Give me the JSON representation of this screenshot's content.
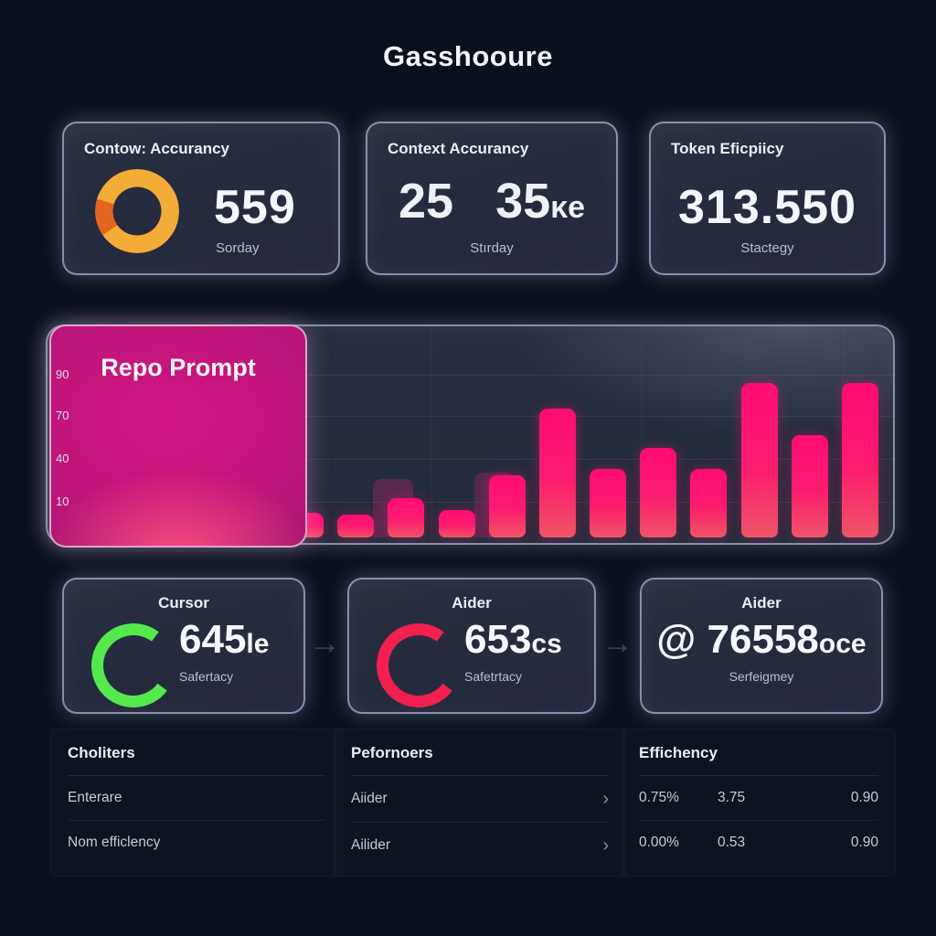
{
  "page": {
    "title": "Gasshooure"
  },
  "colors": {
    "background": "#0a111d",
    "accent_pink": "#ff0c72",
    "accent_amber": "#f3ac38",
    "accent_green": "#55e94e",
    "accent_red": "#f2204e"
  },
  "stat_cards": [
    {
      "title": "Contow: Accurancy",
      "value": "559",
      "subtitle": "Sorday",
      "icon": "donut-ring"
    },
    {
      "title": "Context Accurancy",
      "value_a": "25",
      "value_b": "35",
      "value_b_suffix": "ᴋe",
      "subtitle": "Stırday"
    },
    {
      "title": "Token Eficpiicy",
      "value": "313.550",
      "subtitle": "Stactegy"
    }
  ],
  "chart_data": {
    "type": "bar",
    "overlay_title": "Repo Prompt",
    "ylabel": "",
    "xlabel": "",
    "ylim": [
      0,
      100
    ],
    "grid": true,
    "y_ticks": [
      "90",
      "70",
      "40",
      "10"
    ],
    "values": [
      3,
      2,
      12,
      4,
      27,
      70,
      31,
      45,
      31,
      86,
      52,
      86
    ],
    "bars": [
      {
        "v": 3,
        "h": 12
      },
      {
        "v": 2,
        "h": 11
      },
      {
        "v": 12,
        "h": 19,
        "ghost": 28
      },
      {
        "v": 4,
        "h": 13
      },
      {
        "v": 27,
        "h": 30,
        "ghost": 31
      },
      {
        "v": 70,
        "h": 62
      },
      {
        "v": 31,
        "h": 33
      },
      {
        "v": 45,
        "h": 43
      },
      {
        "v": 31,
        "h": 33
      },
      {
        "v": 86,
        "h": 74
      },
      {
        "v": 52,
        "h": 49
      },
      {
        "v": 86,
        "h": 74
      }
    ],
    "bar_color_top": "#ff0c72",
    "bar_color_bottom": "#ef5566"
  },
  "model_cards": [
    {
      "title": "Cursor",
      "value": "645",
      "suffix": "le",
      "subtitle": "Safertacy",
      "arc_color": "#55e94e"
    },
    {
      "title": "Aider",
      "value": "653",
      "suffix": "cs",
      "subtitle": "Safetrtacy",
      "arc_color": "#f2204e"
    },
    {
      "title": "Aider",
      "prefix": "@ ",
      "value": "76558",
      "suffix": "oce",
      "subtitle": "Serfeigmey",
      "arc_color": null
    }
  ],
  "connector_glyph": "→",
  "lists": [
    {
      "header": "Choliters",
      "rows": [
        {
          "label": "Enterare"
        },
        {
          "label": "Nom efficlency"
        }
      ]
    },
    {
      "header": "Pefornoers",
      "rows": [
        {
          "label": "Aiider",
          "chevron": "›"
        },
        {
          "label": "Ailider",
          "chevron": "›"
        }
      ]
    },
    {
      "header": "Effichency",
      "rows": [
        {
          "cols": [
            "0.75%",
            "3.75",
            "0.90"
          ]
        },
        {
          "cols": [
            "0.00%",
            "0.53",
            "0.90"
          ]
        }
      ]
    }
  ]
}
